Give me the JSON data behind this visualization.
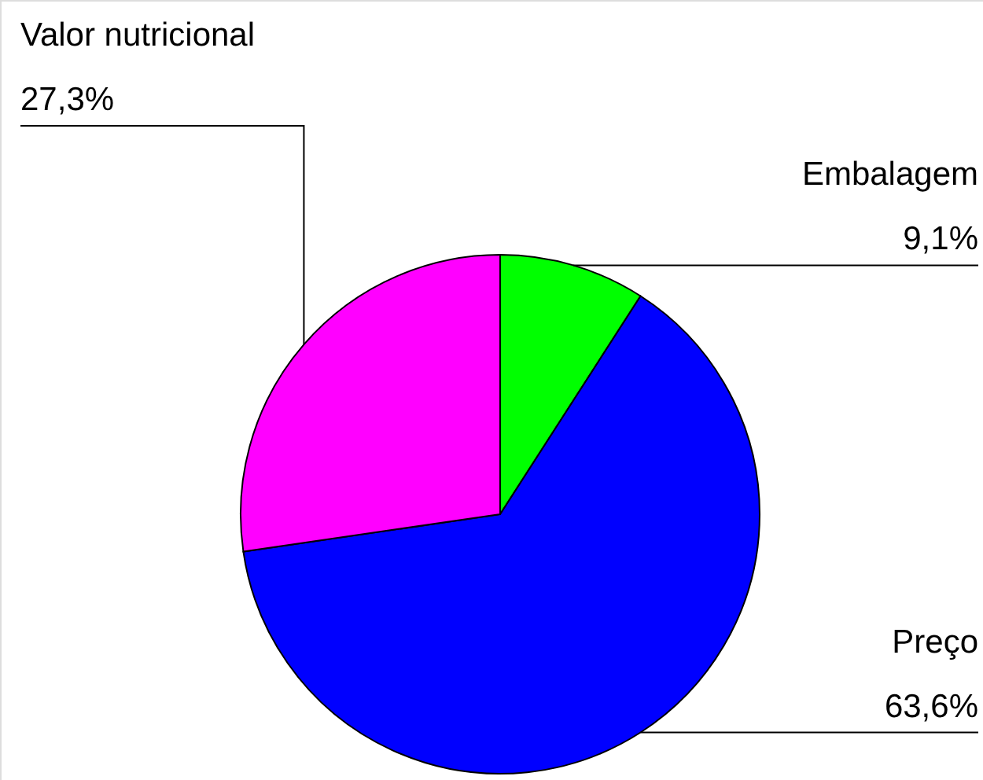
{
  "chart_data": {
    "type": "pie",
    "categories": [
      "Embalagem",
      "Preço",
      "Valor nutricional"
    ],
    "values": [
      9.1,
      63.6,
      27.3
    ],
    "colors": [
      "#00ff00",
      "#0000ff",
      "#ff00ff"
    ],
    "value_labels": [
      "9,1%",
      "63,6%",
      "27,3%"
    ]
  }
}
